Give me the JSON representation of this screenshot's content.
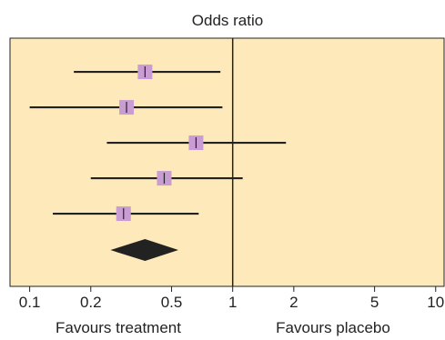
{
  "chart_data": {
    "type": "forest",
    "title": "Odds ratio",
    "x_scale": "log",
    "xlim": [
      0.08,
      11
    ],
    "x_ticks": [
      0.1,
      0.2,
      0.5,
      1,
      2,
      5,
      10
    ],
    "x_tick_labels": [
      "0.1",
      "0.2",
      "0.5",
      "1",
      "2",
      "5",
      "10"
    ],
    "reference_line": 1,
    "left_label": "Favours treatment",
    "right_label": "Favours placebo",
    "studies": [
      {
        "or": 0.37,
        "lower": 0.165,
        "upper": 0.87
      },
      {
        "or": 0.3,
        "lower": 0.1,
        "upper": 0.89
      },
      {
        "or": 0.66,
        "lower": 0.24,
        "upper": 1.83
      },
      {
        "or": 0.46,
        "lower": 0.2,
        "upper": 1.12
      },
      {
        "or": 0.29,
        "lower": 0.13,
        "upper": 0.68
      }
    ],
    "pooled": {
      "or": 0.37,
      "lower": 0.25,
      "upper": 0.54
    },
    "colors": {
      "background": "#fde9b9",
      "marker": "#c99cd4",
      "line": "#222222",
      "diamond": "#222222"
    }
  }
}
